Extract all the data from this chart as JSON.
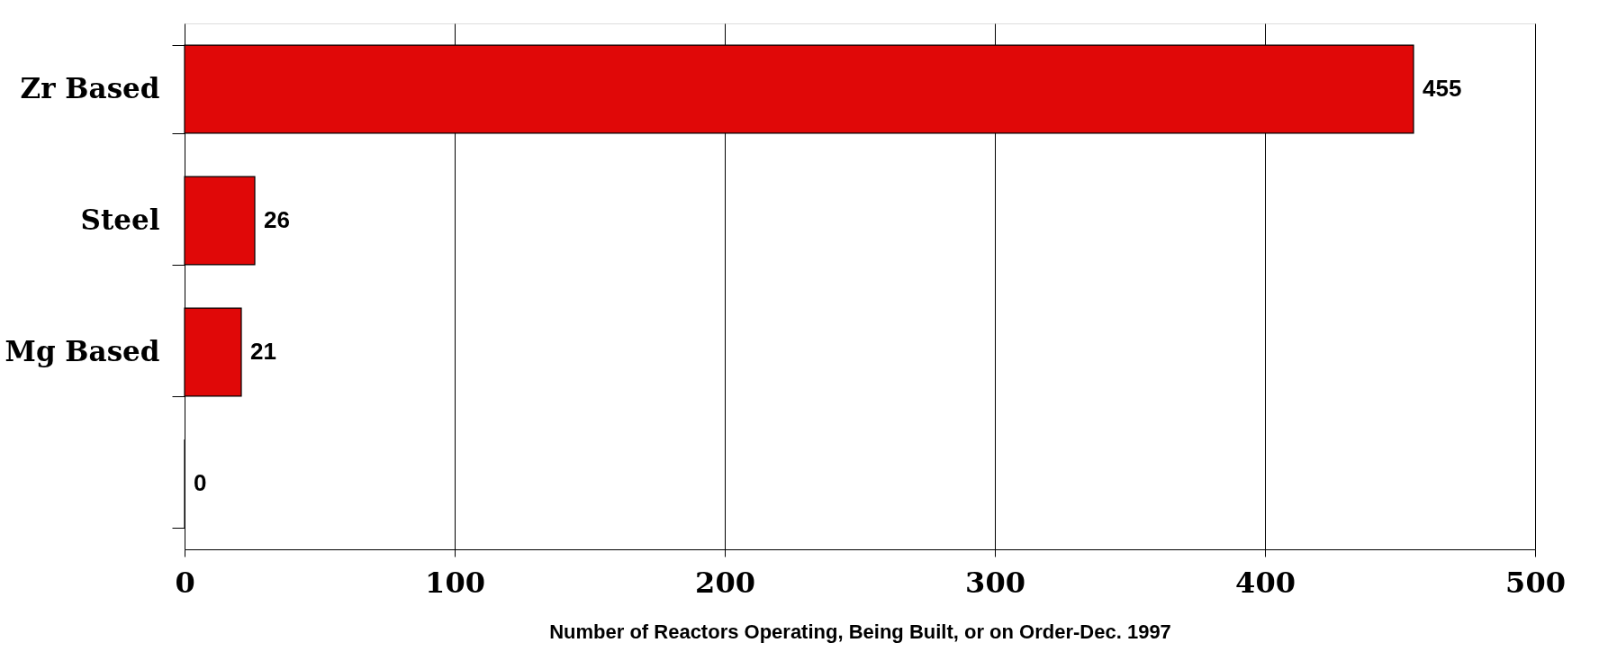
{
  "chart_data": {
    "type": "bar",
    "orientation": "horizontal",
    "categories": [
      "Zr Based",
      "Steel",
      "Mg Based",
      null
    ],
    "values": [
      455,
      26,
      21,
      0
    ],
    "color": "#e00808",
    "xlabel": "Number of Reactors Operating, Being Built, or on Order-Dec. 1997",
    "xlim": [
      0,
      500
    ],
    "xticks": [
      0,
      100,
      200,
      300,
      400,
      500
    ],
    "grid": "x",
    "data_labels": true
  }
}
